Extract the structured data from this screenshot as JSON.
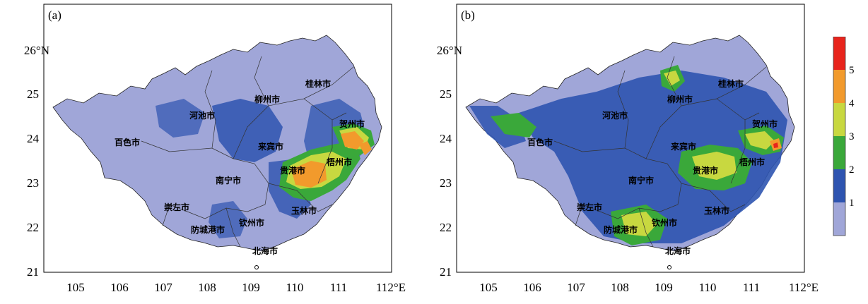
{
  "panels": [
    {
      "label": "(a)",
      "cities": [
        "桂林市",
        "柳州市",
        "河池市",
        "百色市",
        "来宾市",
        "贺州市",
        "梧州市",
        "贵港市",
        "南宁市",
        "崇左市",
        "玉林市",
        "防城港市",
        "钦州市",
        "北海市"
      ]
    },
    {
      "label": "(b)",
      "cities": [
        "桂林市",
        "柳州市",
        "河池市",
        "百色市",
        "来宾市",
        "贺州市",
        "梧州市",
        "贵港市",
        "南宁市",
        "崇左市",
        "玉林市",
        "防城港市",
        "钦州市",
        "北海市"
      ]
    }
  ],
  "axes": {
    "x_ticks": [
      "105",
      "106",
      "107",
      "108",
      "109",
      "110",
      "111",
      "112°E"
    ],
    "y_ticks": [
      "21",
      "22",
      "23",
      "24",
      "25",
      "26°N"
    ],
    "x_range": [
      104.5,
      112.5
    ],
    "y_range": [
      20.8,
      26.8
    ]
  },
  "colorbar": {
    "labels": [
      "1",
      "2",
      "3",
      "4",
      "5"
    ],
    "colors": [
      "#a0a6d8",
      "#2e54b0",
      "#3aa83a",
      "#c8d840",
      "#f29a2c",
      "#e8241c"
    ]
  },
  "colors": {
    "level1": "#a0a6d8",
    "level2": "#2e54b0",
    "level3": "#3aa83a",
    "level4": "#c8d840",
    "level5": "#f29a2c",
    "level6": "#e8241c"
  }
}
